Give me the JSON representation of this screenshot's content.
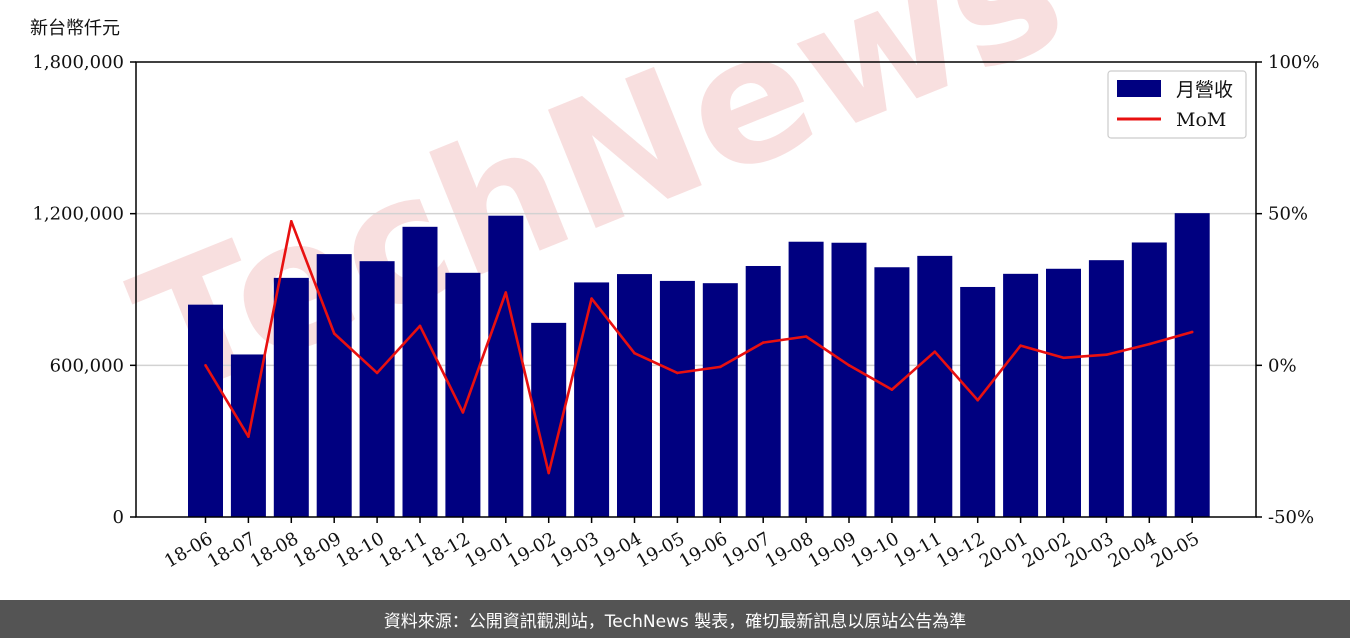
{
  "unit_label": "新台幣仟元",
  "footer_text": "資料來源：公開資訊觀測站，TechNews 製表，確切最新訊息以原站公告為準",
  "watermark_text": "TechNews",
  "colors": {
    "bar": "#000080",
    "line": "#e81010",
    "footer_bg": "#545454",
    "watermark": "#f3c4c4"
  },
  "chart_data": {
    "type": "bar",
    "categories": [
      "18-06",
      "18-07",
      "18-08",
      "18-09",
      "18-10",
      "18-11",
      "18-12",
      "19-01",
      "19-02",
      "19-03",
      "19-04",
      "19-05",
      "19-06",
      "19-07",
      "19-08",
      "19-09",
      "19-10",
      "19-11",
      "19-12",
      "20-01",
      "20-02",
      "20-03",
      "20-04",
      "20-05"
    ],
    "series": [
      {
        "name": "月營收",
        "type": "bar",
        "axis": "left",
        "values": [
          840000,
          643000,
          946000,
          1040000,
          1012000,
          1148000,
          966000,
          1192000,
          768000,
          928000,
          961000,
          934000,
          925000,
          993000,
          1089000,
          1085000,
          988000,
          1033000,
          910000,
          962000,
          982000,
          1016000,
          1086000,
          1202000
        ]
      },
      {
        "name": "MoM",
        "type": "line",
        "axis": "right",
        "values": [
          0.0,
          -23.5,
          47.5,
          10.5,
          -2.5,
          13.0,
          -15.5,
          24.0,
          -35.5,
          22.0,
          4.0,
          -2.5,
          -0.5,
          7.5,
          9.5,
          0.0,
          -8.0,
          4.5,
          -11.5,
          6.5,
          2.5,
          3.5,
          7.0,
          11.0
        ]
      }
    ],
    "y_left": {
      "min": 0,
      "max": 1800000,
      "ticks": [
        "0",
        "600,000",
        "1,200,000",
        "1,800,000"
      ],
      "tick_values": [
        0,
        600000,
        1200000,
        1800000
      ]
    },
    "y_right": {
      "min": -50,
      "max": 100,
      "ticks": [
        "-50%",
        "0%",
        "50%",
        "100%"
      ],
      "tick_values": [
        -50,
        0,
        50,
        100
      ]
    },
    "grid": "horizontal",
    "legend": "top-right"
  }
}
